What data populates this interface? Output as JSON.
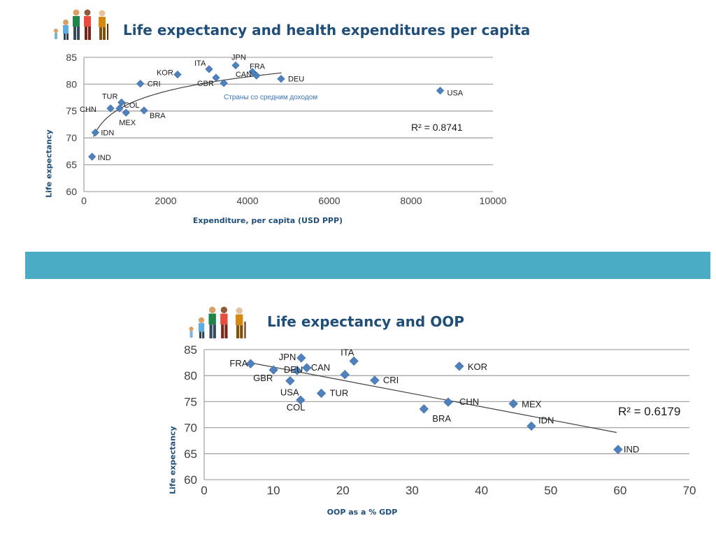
{
  "colors": {
    "title": "#1f4e79",
    "band": "#4bacc6",
    "marker": "#4f81bd",
    "grid": "#a6a6a6",
    "axis_text": "#404040"
  },
  "slide": {
    "title1": "Life expectancy and health expenditures per capita",
    "title2": "Life expectancy and OOP",
    "band_icon": "blue-band"
  },
  "chart_data": [
    {
      "type": "scatter",
      "title": "Life expectancy and health expenditures per capita",
      "xlabel": "Expenditure, per capita (USD PPP)",
      "ylabel": "Life expectancy",
      "xlim": [
        0,
        10000
      ],
      "ylim": [
        60,
        85
      ],
      "xticks": [
        0,
        2000,
        4000,
        6000,
        8000,
        10000
      ],
      "yticks": [
        60,
        65,
        70,
        75,
        80,
        85
      ],
      "grid": true,
      "trend": "logarithmic",
      "r2": "R² = 0.8741",
      "annotation": "Страны со средним доходом",
      "points": [
        {
          "label": "IND",
          "x": 200,
          "y": 66.5
        },
        {
          "label": "IDN",
          "x": 280,
          "y": 71.0
        },
        {
          "label": "CHN",
          "x": 650,
          "y": 75.5
        },
        {
          "label": "COL",
          "x": 870,
          "y": 75.5
        },
        {
          "label": "MEX",
          "x": 1030,
          "y": 74.7
        },
        {
          "label": "TUR",
          "x": 920,
          "y": 76.6
        },
        {
          "label": "BRA",
          "x": 1470,
          "y": 75.1
        },
        {
          "label": "CRI",
          "x": 1380,
          "y": 80.1
        },
        {
          "label": "KOR",
          "x": 2290,
          "y": 81.8
        },
        {
          "label": "ITA",
          "x": 3060,
          "y": 82.8
        },
        {
          "label": "GBR",
          "x": 3230,
          "y": 81.2
        },
        {
          "label": "JPN",
          "x": 3710,
          "y": 83.5
        },
        {
          "label": "FRA",
          "x": 4120,
          "y": 82.3
        },
        {
          "label": "CAN",
          "x": 4220,
          "y": 81.6
        },
        {
          "label": "DEU",
          "x": 4820,
          "y": 81.0
        },
        {
          "label": "USA",
          "x": 8710,
          "y": 78.8
        },
        {
          "label": "",
          "x": 3420,
          "y": 80.2
        }
      ]
    },
    {
      "type": "scatter",
      "title": "Life expectancy and OOP",
      "xlabel": "OOP as a % GDP",
      "ylabel": "Life expectancy",
      "xlim": [
        0,
        70
      ],
      "ylim": [
        60,
        85
      ],
      "xticks": [
        0,
        10,
        20,
        30,
        40,
        50,
        60,
        70
      ],
      "yticks": [
        60,
        65,
        70,
        75,
        80,
        85
      ],
      "grid": true,
      "trend": "linear",
      "r2": "R² = 0.6179",
      "points": [
        {
          "label": "FRA",
          "x": 6.7,
          "y": 82.3
        },
        {
          "label": "GBR",
          "x": 10.0,
          "y": 81.1
        },
        {
          "label": "DEU",
          "x": 13.4,
          "y": 81.0
        },
        {
          "label": "USA",
          "x": 12.4,
          "y": 79.0
        },
        {
          "label": "JPN",
          "x": 14.0,
          "y": 83.4
        },
        {
          "label": "CAN",
          "x": 14.8,
          "y": 81.5
        },
        {
          "label": "COL",
          "x": 13.9,
          "y": 75.3
        },
        {
          "label": "TUR",
          "x": 16.9,
          "y": 76.6
        },
        {
          "label": "ITA",
          "x": 21.6,
          "y": 82.8
        },
        {
          "label": "",
          "x": 20.3,
          "y": 80.2
        },
        {
          "label": "CRI",
          "x": 24.6,
          "y": 79.1
        },
        {
          "label": "BRA",
          "x": 31.7,
          "y": 73.6
        },
        {
          "label": "CHN",
          "x": 35.2,
          "y": 74.9
        },
        {
          "label": "KOR",
          "x": 36.8,
          "y": 81.8
        },
        {
          "label": "MEX",
          "x": 44.6,
          "y": 74.6
        },
        {
          "label": "IDN",
          "x": 47.2,
          "y": 70.3
        },
        {
          "label": "IND",
          "x": 59.7,
          "y": 65.8
        }
      ]
    }
  ]
}
